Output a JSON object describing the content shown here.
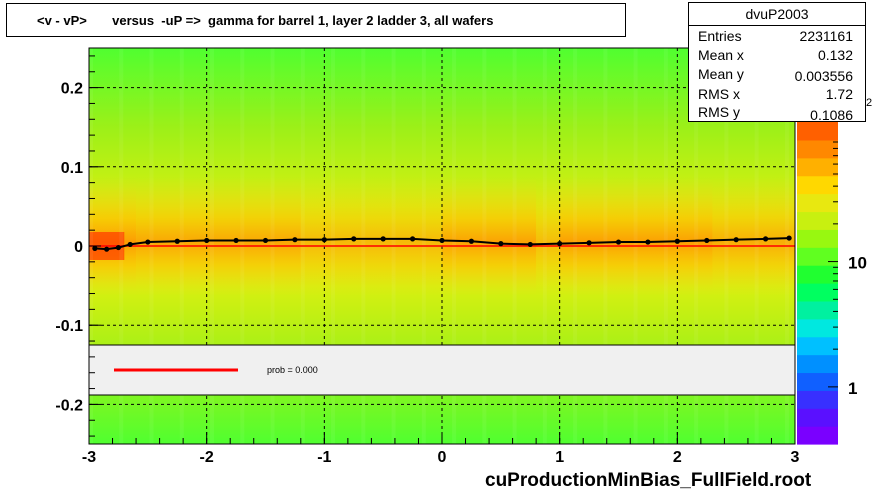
{
  "title": "<v - vP>       versus  -uP =>  gamma for barrel 1, layer 2 ladder 3, all wafers",
  "stats": {
    "name": "dvuP2003",
    "rows": [
      {
        "label": "Entries",
        "value": "2231161"
      },
      {
        "label": "Mean x",
        "value": "0.132"
      },
      {
        "label": "Mean y",
        "value": "0.003556"
      },
      {
        "label": "RMS x",
        "value": "1.72"
      },
      {
        "label": "RMS y",
        "value": "0.1086"
      }
    ]
  },
  "legend": {
    "text": "prob = 0.000",
    "line_color": "#ff0000"
  },
  "footer": "cuProductionMinBias_FullField.root",
  "colors": {
    "fit_line": "#ff0000",
    "marker": "#000000",
    "legend_bg": "#f0f0f0"
  },
  "chart_data": {
    "type": "heatmap",
    "xlim": [
      -3,
      3
    ],
    "ylim": [
      -0.25,
      0.25
    ],
    "x_ticks": [
      -3,
      -2,
      -1,
      0,
      1,
      2,
      3
    ],
    "y_ticks": [
      -0.2,
      -0.1,
      0,
      0.1,
      0.2
    ],
    "x_tick_labels": [
      "-3",
      "-2",
      "-1",
      "0",
      "1",
      "2",
      "3"
    ],
    "y_tick_labels": [
      "-0.2",
      "-0.1",
      "0",
      "0.1",
      "0.2"
    ],
    "grid": true,
    "colorbar": {
      "scale": "log",
      "tick_labels": [
        "1",
        "10"
      ],
      "tick_values": [
        1,
        10
      ],
      "exponent_fragment": "2"
    },
    "profile": {
      "x": [
        -2.95,
        -2.85,
        -2.75,
        -2.65,
        -2.5,
        -2.25,
        -2.0,
        -1.75,
        -1.5,
        -1.25,
        -1.0,
        -0.75,
        -0.5,
        -0.25,
        0.0,
        0.25,
        0.5,
        0.75,
        1.0,
        1.25,
        1.5,
        1.75,
        2.0,
        2.25,
        2.5,
        2.75,
        2.95
      ],
      "y": [
        -0.003,
        -0.004,
        -0.002,
        0.002,
        0.005,
        0.006,
        0.007,
        0.007,
        0.007,
        0.008,
        0.008,
        0.009,
        0.009,
        0.009,
        0.007,
        0.006,
        0.003,
        0.002,
        0.003,
        0.004,
        0.005,
        0.005,
        0.006,
        0.007,
        0.008,
        0.009,
        0.01
      ]
    },
    "fit_line": {
      "x": [
        -3,
        3
      ],
      "y": [
        0.0,
        0.0
      ]
    }
  }
}
